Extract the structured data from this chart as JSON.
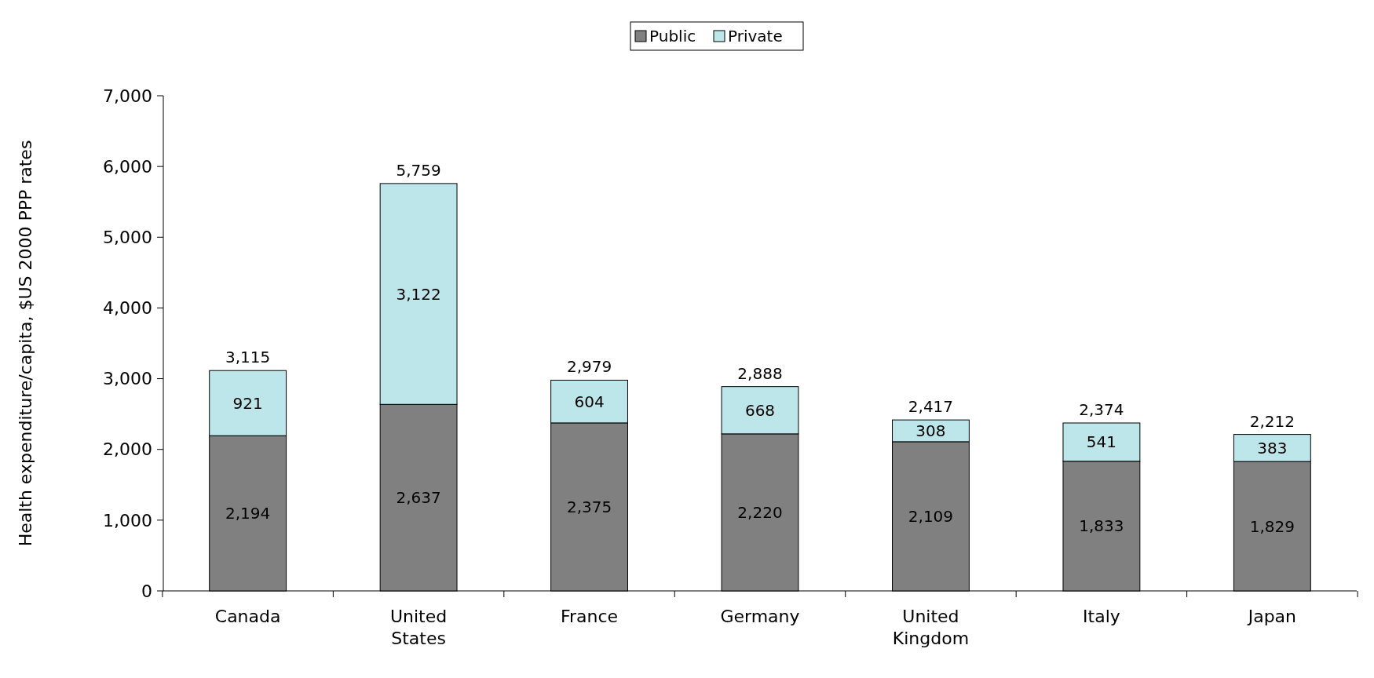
{
  "chart_data": {
    "type": "bar",
    "stacked": true,
    "ylabel": "Health expenditure/capita, $US 2000 PPP rates",
    "categories": [
      "Canada",
      "United States",
      "France",
      "Germany",
      "United Kingdom",
      "Italy",
      "Japan"
    ],
    "series": [
      {
        "name": "Public",
        "color": "#808080",
        "values": [
          2194,
          2637,
          2375,
          2220,
          2109,
          1833,
          1829
        ],
        "value_labels": [
          "2,194",
          "2,637",
          "2,375",
          "2,220",
          "2,109",
          "1,833",
          "1,829"
        ]
      },
      {
        "name": "Private",
        "color": "#bde6ea",
        "values": [
          921,
          3122,
          604,
          668,
          308,
          541,
          383
        ],
        "value_labels": [
          "921",
          "3,122",
          "604",
          "668",
          "308",
          "541",
          "383"
        ]
      }
    ],
    "totals": [
      "3,115",
      "5,759",
      "2,979",
      "2,888",
      "2,417",
      "2,374",
      "2,212"
    ],
    "legend": "top",
    "ylim": [
      0,
      7000
    ],
    "yticks": [
      0,
      {
        "value": 1000,
        "label": "1,000"
      },
      {
        "value": 2000,
        "label": "2,000"
      },
      {
        "value": 3000,
        "label": "3,000"
      },
      {
        "value": 4000,
        "label": "4,000"
      },
      {
        "value": 5000,
        "label": "5,000"
      },
      {
        "value": 6000,
        "label": "6,000"
      },
      {
        "value": 7000,
        "label": "7,000"
      }
    ]
  }
}
